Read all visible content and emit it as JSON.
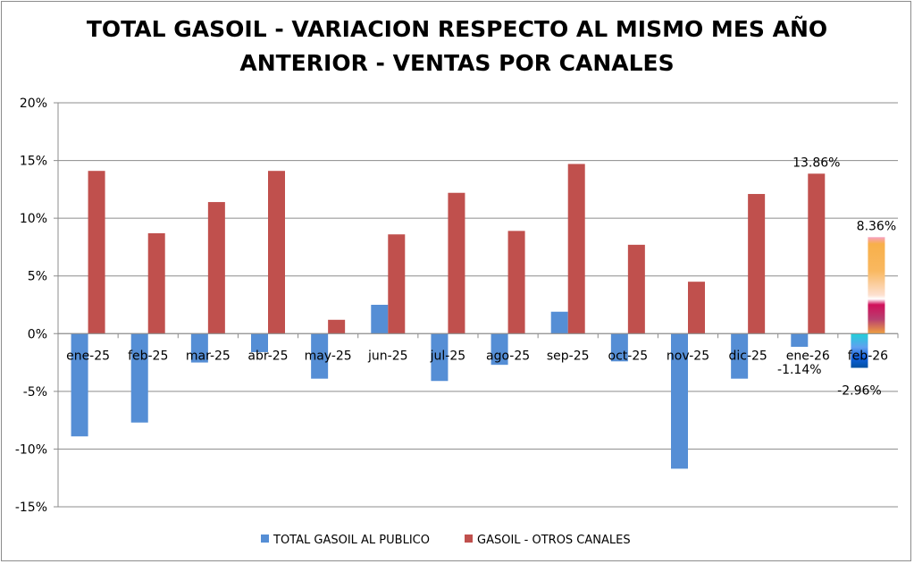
{
  "chart_data": {
    "type": "bar",
    "title_lines": [
      "TOTAL GASOIL - VARIACION RESPECTO AL MISMO MES AÑO",
      "ANTERIOR - VENTAS POR CANALES"
    ],
    "categories": [
      "ene-25",
      "feb-25",
      "mar-25",
      "abr-25",
      "may-25",
      "jun-25",
      "jul-25",
      "ago-25",
      "sep-25",
      "oct-25",
      "nov-25",
      "dic-25",
      "ene-26",
      "feb-26"
    ],
    "series": [
      {
        "name": "TOTAL GASOIL AL PUBLICO",
        "color": "#558ed5",
        "values": [
          -8.9,
          -7.7,
          -2.5,
          -1.6,
          -3.9,
          2.5,
          -4.1,
          -2.7,
          1.9,
          -2.4,
          -11.7,
          -3.9,
          -1.14,
          -2.96
        ]
      },
      {
        "name": "GASOIL - OTROS CANALES",
        "color": "#c0504d",
        "values": [
          14.1,
          8.7,
          11.4,
          14.1,
          1.2,
          8.6,
          12.2,
          8.9,
          14.7,
          7.7,
          4.5,
          12.1,
          13.86,
          8.36
        ]
      }
    ],
    "data_labels": [
      {
        "series": 0,
        "index": 12,
        "text": "-1.14%"
      },
      {
        "series": 1,
        "index": 12,
        "text": "13.86%"
      },
      {
        "series": 0,
        "index": 13,
        "text": "-2.96%"
      },
      {
        "series": 1,
        "index": 13,
        "text": "8.36%"
      }
    ],
    "last_bar_gradient_fill": true,
    "ylim": [
      -15,
      20
    ],
    "yticks": [
      -15,
      -10,
      -5,
      0,
      5,
      10,
      15,
      20
    ],
    "ytick_labels": [
      "-15%",
      "-10%",
      "-5%",
      "0%",
      "5%",
      "10%",
      "15%",
      "20%"
    ],
    "grid": true,
    "legend": "bottom"
  }
}
